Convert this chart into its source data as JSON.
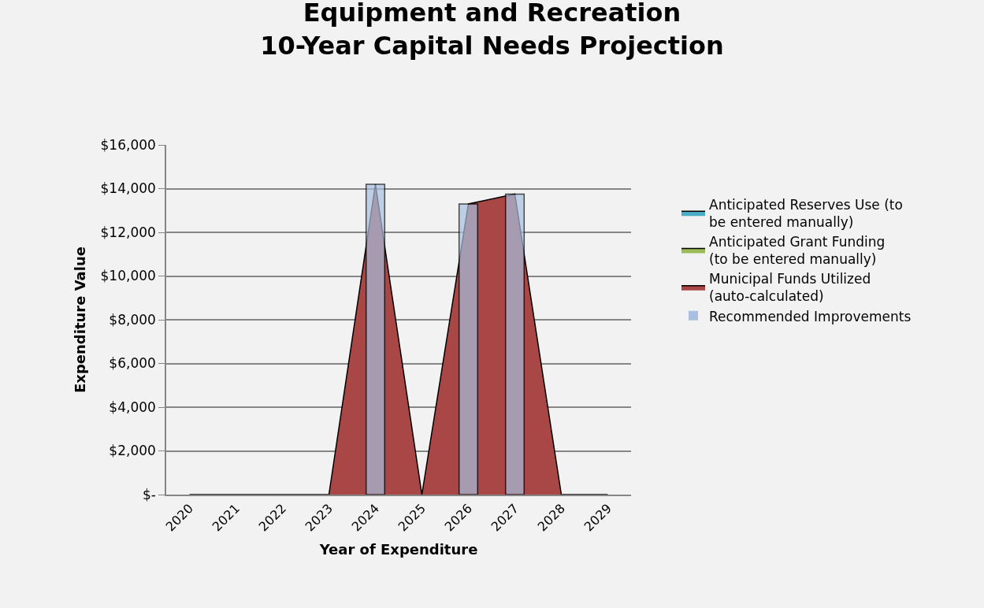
{
  "chart_data": {
    "type": "area",
    "title": "Equipment and Recreation\n10-Year Capital Needs Projection",
    "xlabel": "Year of Expenditure",
    "ylabel": "Expenditure Value",
    "categories": [
      "2020",
      "2021",
      "2022",
      "2023",
      "2024",
      "2025",
      "2026",
      "2027",
      "2028",
      "2029"
    ],
    "series": [
      {
        "name": "Anticipated Reserves Use (to be entered manually)",
        "color": "#4bacc6",
        "values": [
          null,
          null,
          null,
          null,
          null,
          null,
          null,
          null,
          null,
          null
        ]
      },
      {
        "name": "Anticipated Grant Funding (to be entered manually)",
        "color": "#9bbb59",
        "values": [
          null,
          null,
          null,
          null,
          null,
          null,
          null,
          null,
          null,
          null
        ]
      },
      {
        "name": "Municipal Funds Utilized (auto-calculated)",
        "color": "#a84745",
        "values": [
          0,
          0,
          0,
          0,
          14200,
          0,
          13300,
          13750,
          0,
          0
        ]
      },
      {
        "name": "Recommended Improvements",
        "color": "#a7bfe0",
        "type": "bar",
        "values": [
          0,
          0,
          0,
          0,
          14200,
          0,
          13300,
          13750,
          0,
          0
        ]
      }
    ],
    "ylim": [
      0,
      16000
    ],
    "yticks": [
      {
        "value": 0,
        "label": "$-"
      },
      {
        "value": 2000,
        "label": "$2,000"
      },
      {
        "value": 4000,
        "label": "$4,000"
      },
      {
        "value": 6000,
        "label": "$6,000"
      },
      {
        "value": 8000,
        "label": "$8,000"
      },
      {
        "value": 10000,
        "label": "$10,000"
      },
      {
        "value": 12000,
        "label": "$12,000"
      },
      {
        "value": 14000,
        "label": "$14,000"
      },
      {
        "value": 16000,
        "label": "$16,000"
      }
    ],
    "grid": "y",
    "legend": "right"
  }
}
